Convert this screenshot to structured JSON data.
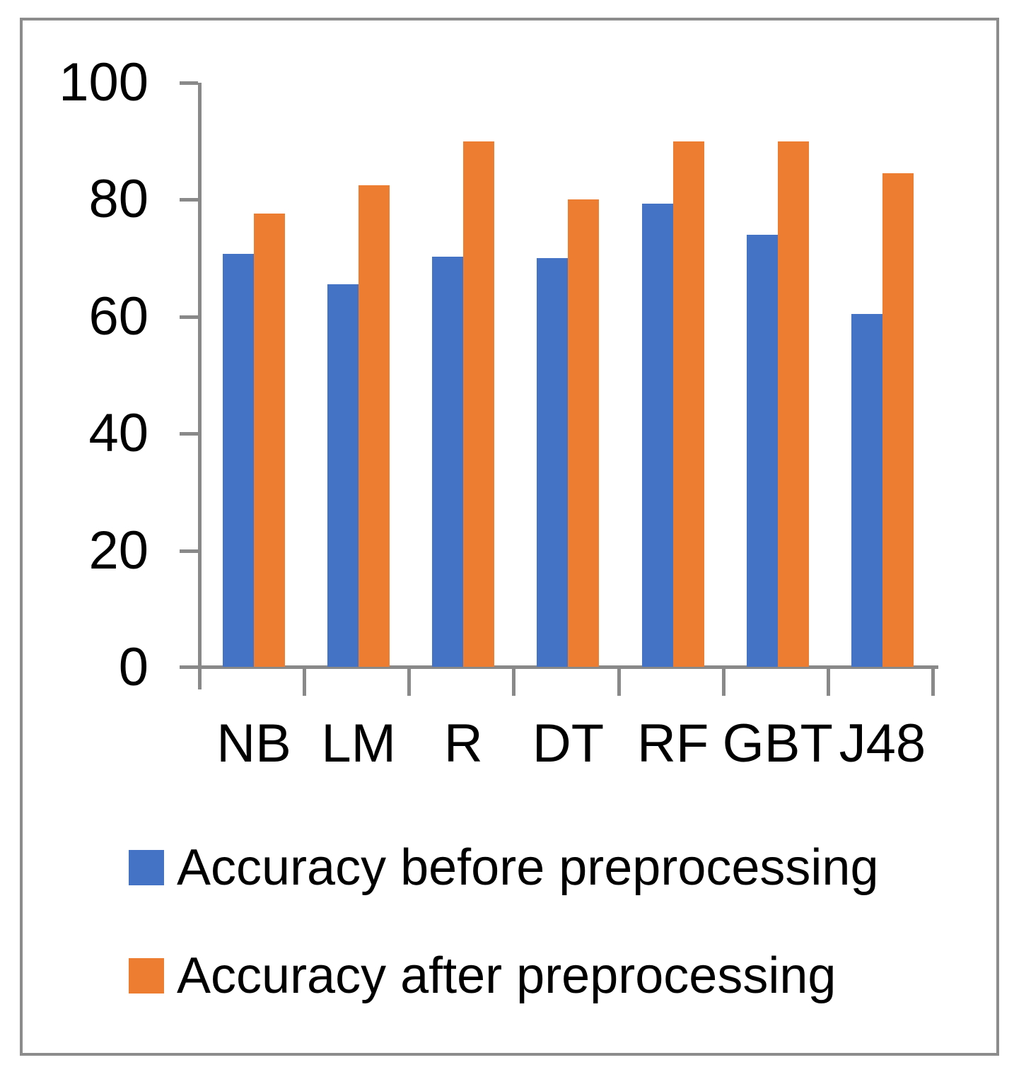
{
  "chart_data": {
    "type": "bar",
    "title": "",
    "xlabel": "",
    "ylabel": "",
    "categories": [
      "NB",
      "LM",
      "R",
      "DT",
      "RF",
      "GBT",
      "J48"
    ],
    "series": [
      {
        "name": "Accuracy before preprocessing",
        "color": "#4472C4",
        "values": [
          70.7,
          65.5,
          70.3,
          70.0,
          79.3,
          74.0,
          60.4
        ]
      },
      {
        "name": "Accuracy after preprocessing",
        "color": "#ED7D31",
        "values": [
          77.6,
          82.5,
          90.0,
          80.0,
          90.0,
          90.0,
          84.5
        ]
      }
    ],
    "ylim": [
      0,
      100
    ],
    "yticks": [
      0,
      20,
      40,
      60,
      80,
      100
    ],
    "grid": false,
    "legend_position": "bottom-left",
    "axis_color": "#898989",
    "frame_color": "#8c8c8c"
  },
  "legend": {
    "before_label": "Accuracy before preprocessing",
    "after_label": "Accuracy after preprocessing"
  }
}
